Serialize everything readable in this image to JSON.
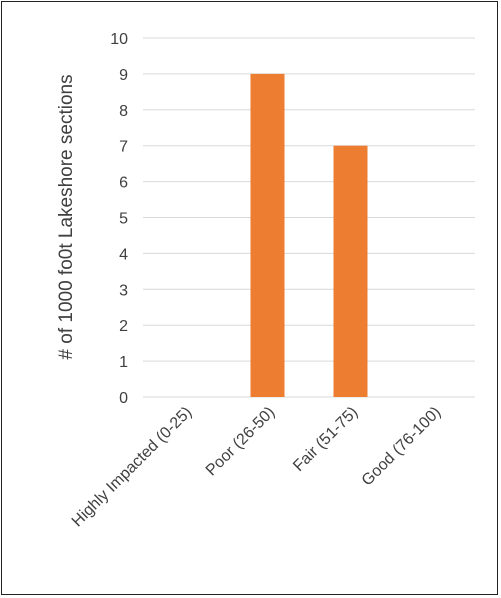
{
  "chart_data": {
    "type": "bar",
    "title": "",
    "xlabel": "",
    "ylabel": "# of 1000 fo0t Lakeshore sections",
    "categories": [
      "Highly Impacted (0-25)",
      "Poor (26-50)",
      "Fair (51-75)",
      "Good (76-100)"
    ],
    "values": [
      0,
      9,
      7,
      0
    ],
    "ylim": [
      0,
      10
    ],
    "yticks": [
      "0",
      "1",
      "2",
      "3",
      "4",
      "5",
      "6",
      "7",
      "8",
      "9",
      "10"
    ],
    "grid": true,
    "legend": "none",
    "bar_color": "#ED7D31",
    "grid_color": "#D9D9D9",
    "text_color": "#404040"
  }
}
